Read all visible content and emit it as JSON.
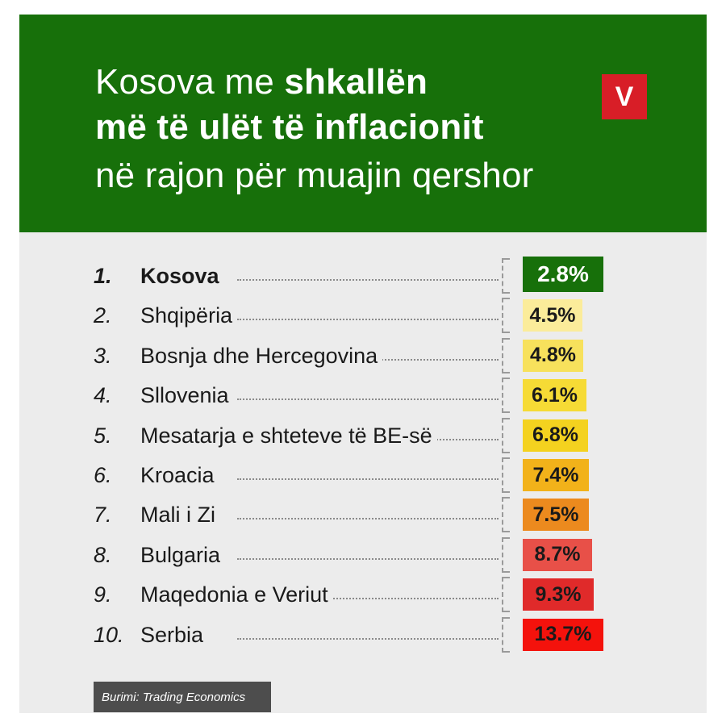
{
  "header": {
    "line1_regular": "Kosova me ",
    "line1_bold": "shkallën",
    "line2": "më të ulët të inflacionit",
    "line3": "në rajon për muajin qershor",
    "logo_letter": "V"
  },
  "colors": {
    "header_bg": "#17700a",
    "card_bg": "#ececec",
    "logo_bg": "#d81e27"
  },
  "chart_data": {
    "type": "table",
    "rows": [
      {
        "rank": "1.",
        "name": "Kosova",
        "label": "2.8%",
        "value": 2.8,
        "color": "#17700a",
        "text_color": "#ffffff"
      },
      {
        "rank": "2.",
        "name": "Shqipëria",
        "label": "4.5%",
        "value": 4.5,
        "color": "#fbec9a",
        "text_color": "#1a1a1a"
      },
      {
        "rank": "3.",
        "name": "Bosnja dhe Hercegovina",
        "label": "4.8%",
        "value": 4.8,
        "color": "#f7e15c",
        "text_color": "#1a1a1a"
      },
      {
        "rank": "4.",
        "name": "Sllovenia",
        "label": "6.1%",
        "value": 6.1,
        "color": "#f6db35",
        "text_color": "#1a1a1a"
      },
      {
        "rank": "5.",
        "name": "Mesatarja e shteteve të BE-së",
        "label": "6.8%",
        "value": 6.8,
        "color": "#f4d21f",
        "text_color": "#1a1a1a"
      },
      {
        "rank": "6.",
        "name": "Kroacia",
        "label": "7.4%",
        "value": 7.4,
        "color": "#f2b21a",
        "text_color": "#1a1a1a"
      },
      {
        "rank": "7.",
        "name": "Mali i Zi",
        "label": "7.5%",
        "value": 7.5,
        "color": "#ec8a1e",
        "text_color": "#1a1a1a"
      },
      {
        "rank": "8.",
        "name": "Bulgaria",
        "label": "8.7%",
        "value": 8.7,
        "color": "#e85048",
        "text_color": "#1a1a1a"
      },
      {
        "rank": "9.",
        "name": "Maqedonia e Veriut",
        "label": "9.3%",
        "value": 9.3,
        "color": "#e02a2a",
        "text_color": "#1a1a1a"
      },
      {
        "rank": "10.",
        "name": "Serbia",
        "label": "13.7%",
        "value": 13.7,
        "color": "#f4120c",
        "text_color": "#1a1a1a"
      }
    ]
  },
  "source": {
    "prefix": "Burimi: ",
    "name": "Trading Economics"
  }
}
